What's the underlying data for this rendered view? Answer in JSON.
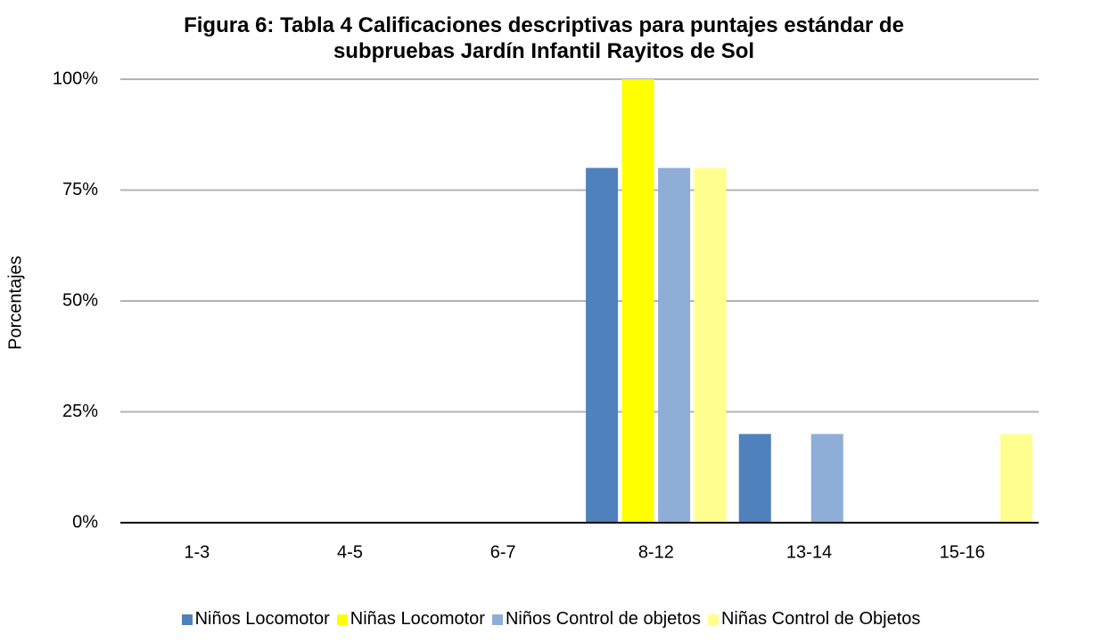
{
  "chart_data": {
    "type": "bar",
    "title": "Figura 6: Tabla 4 Calificaciones descriptivas para puntajes estándar de subpruebas Jardín Infantil Rayitos de Sol",
    "y_label": "Porcentajes",
    "categories": [
      "1-3",
      "4-5",
      "6-7",
      "8-12",
      "13-14",
      "15-16"
    ],
    "series": [
      {
        "name": "Niños Locomotor",
        "color": "#4f81bd",
        "values": [
          0,
          0,
          0,
          80,
          20,
          0
        ]
      },
      {
        "name": "Niñas Locomotor",
        "color": "#ffff00",
        "values": [
          0,
          0,
          0,
          100,
          0,
          0
        ]
      },
      {
        "name": "Niños Control de objetos",
        "color": "#8eaed8",
        "values": [
          0,
          0,
          0,
          80,
          20,
          0
        ]
      },
      {
        "name": "Niñas Control de Objetos",
        "color": "#ffff8f",
        "values": [
          0,
          0,
          0,
          80,
          0,
          20
        ]
      }
    ],
    "ylim": [
      0,
      100
    ],
    "yticks": [
      {
        "value": 0,
        "label": "0%"
      },
      {
        "value": 25,
        "label": "25%"
      },
      {
        "value": 50,
        "label": "50%"
      },
      {
        "value": 75,
        "label": "75%"
      },
      {
        "value": 100,
        "label": "100%"
      }
    ],
    "grid": true,
    "legend": "bottom"
  }
}
